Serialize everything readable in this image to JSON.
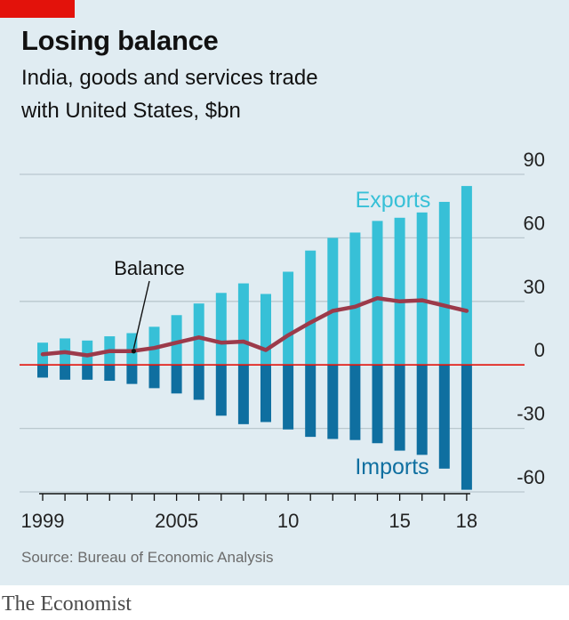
{
  "title": "Losing balance",
  "subtitle_line1": "India, goods and services trade",
  "subtitle_line2": "with United States, $bn",
  "source": "Source: Bureau of Economic Analysis",
  "brand": "The Economist",
  "colors": {
    "background": "#e0ecf2",
    "exports": "#37c0d7",
    "imports": "#0f6fa0",
    "balance": "#9c3a4a",
    "zero_line": "#e3120b",
    "grid": "#b9c7ce",
    "brand_tag": "#e3120b"
  },
  "chart_data": {
    "type": "bar",
    "title": "Losing balance",
    "subtitle": "India, goods and services trade with United States, $bn",
    "ylim": [
      -60,
      90
    ],
    "yticks": [
      90,
      60,
      30,
      0,
      -30,
      -60
    ],
    "ytick_labels": [
      "90",
      "60",
      "30",
      "0",
      "-30",
      "-60"
    ],
    "xtick_labels": [
      {
        "year": 1999,
        "label": "1999"
      },
      {
        "year": 2005,
        "label": "2005"
      },
      {
        "year": 2010,
        "label": "10"
      },
      {
        "year": 2015,
        "label": "15"
      },
      {
        "year": 2018,
        "label": "18"
      }
    ],
    "grid": true,
    "years": [
      1999,
      2000,
      2001,
      2002,
      2003,
      2004,
      2005,
      2006,
      2007,
      2008,
      2009,
      2010,
      2011,
      2012,
      2013,
      2014,
      2015,
      2016,
      2017,
      2018
    ],
    "series": [
      {
        "name": "Exports",
        "kind": "bar",
        "values": [
          10.5,
          12.5,
          11.5,
          13.5,
          15,
          18,
          23.5,
          29,
          34,
          38.5,
          33.5,
          44,
          54,
          60,
          62.5,
          68,
          69.5,
          72,
          77,
          84.5
        ]
      },
      {
        "name": "Imports",
        "kind": "bar",
        "values": [
          -6,
          -7,
          -7,
          -7.5,
          -9,
          -11,
          -13.5,
          -16.5,
          -24,
          -28,
          -27,
          -30.5,
          -34,
          -35,
          -35.5,
          -37,
          -40.5,
          -42.5,
          -49,
          -59
        ]
      },
      {
        "name": "Balance",
        "kind": "line",
        "values": [
          5,
          6,
          4.5,
          6.5,
          6.5,
          8,
          10.5,
          13,
          10.5,
          11,
          7,
          14,
          20,
          25.5,
          27.5,
          31.5,
          30,
          30.5,
          28,
          25.5
        ]
      }
    ],
    "annotations": [
      {
        "text": "Exports",
        "series": "Exports"
      },
      {
        "text": "Imports",
        "series": "Imports"
      },
      {
        "text": "Balance",
        "series": "Balance",
        "year": 2003
      }
    ]
  }
}
